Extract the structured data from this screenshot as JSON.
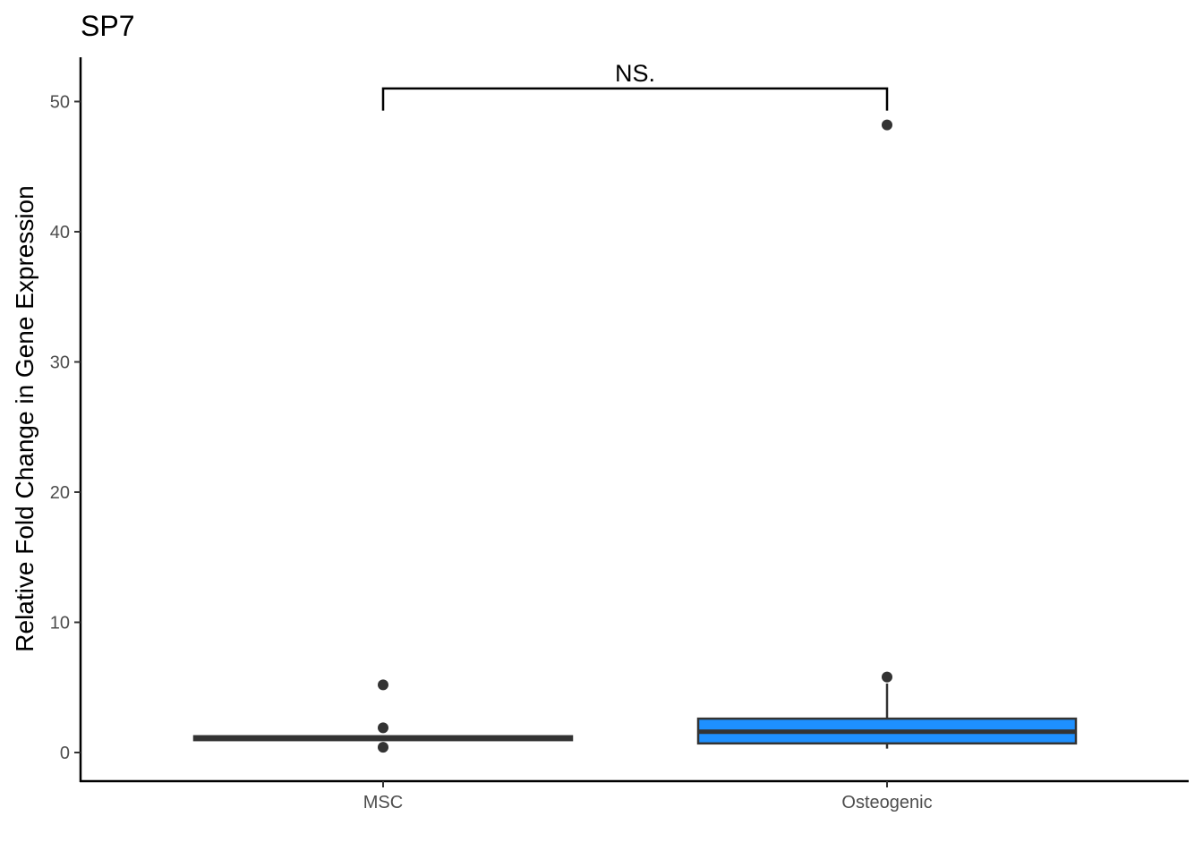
{
  "chart_data": {
    "type": "boxplot",
    "title": "SP7",
    "xlabel": "",
    "ylabel": "Relative Fold Change in Gene Expression",
    "categories": [
      "MSC",
      "Osteogenic"
    ],
    "ylim": [
      -2.2,
      53.4
    ],
    "yticks": [
      0,
      10,
      20,
      30,
      40,
      50
    ],
    "grid": false,
    "legend": "none",
    "series": [
      {
        "category": "MSC",
        "fill": "#ffffff",
        "box": {
          "q1": 0.95,
          "median": 1.1,
          "q3": 1.25,
          "whisker_low": 0.95,
          "whisker_high": 1.25
        },
        "outliers": [
          5.2,
          1.9,
          0.4
        ]
      },
      {
        "category": "Osteogenic",
        "fill": "#1e90ff",
        "box": {
          "q1": 0.7,
          "median": 1.6,
          "q3": 2.6,
          "whisker_low": 0.3,
          "whisker_high": 5.3
        },
        "outliers": [
          48.2,
          5.8
        ]
      }
    ],
    "annotations": [
      {
        "text": "NS.",
        "from": "MSC",
        "to": "Osteogenic",
        "y": 51.0,
        "tip_y": 49.3
      }
    ]
  }
}
